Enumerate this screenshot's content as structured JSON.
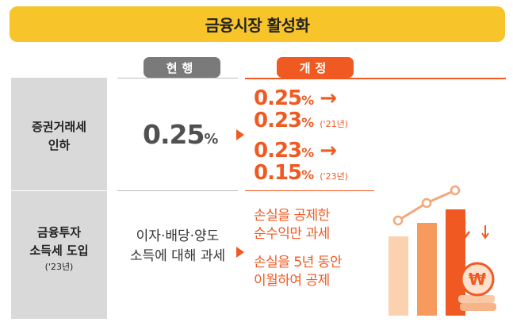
{
  "title": "금융시장 활성화",
  "headers": {
    "current": "현행",
    "revised": "개정"
  },
  "rows": [
    {
      "label_line1": "증권거래세",
      "label_line2": "인하",
      "current_value": "0.25",
      "current_unit": "%",
      "revised": [
        {
          "from": "0.25",
          "to": "0.23",
          "year": "('21년)"
        },
        {
          "from": "0.23",
          "to": "0.15",
          "year": "('23년)"
        }
      ],
      "unit": "%",
      "arrow": "→"
    },
    {
      "label_line1": "금융투자",
      "label_line2": "소득세 도입",
      "label_line3": "('23년)",
      "current_line1": "이자·배당·양도",
      "current_line2": "소득에 대해 과세",
      "revised_line1": "손실을 공제한",
      "revised_line2": "순수익만 과세",
      "revised_line3": "손실을 5년 동안",
      "revised_line4": "이월하여 공제"
    }
  ],
  "illustration": {
    "currency_symbol": "₩",
    "icon": "rising-bar-chart-with-coin-icon"
  },
  "colors": {
    "accent": "#f05a22",
    "title_bg": "#f7c42a",
    "current_pill": "#7a7a7a",
    "label_bg": "#d9d9d9"
  }
}
